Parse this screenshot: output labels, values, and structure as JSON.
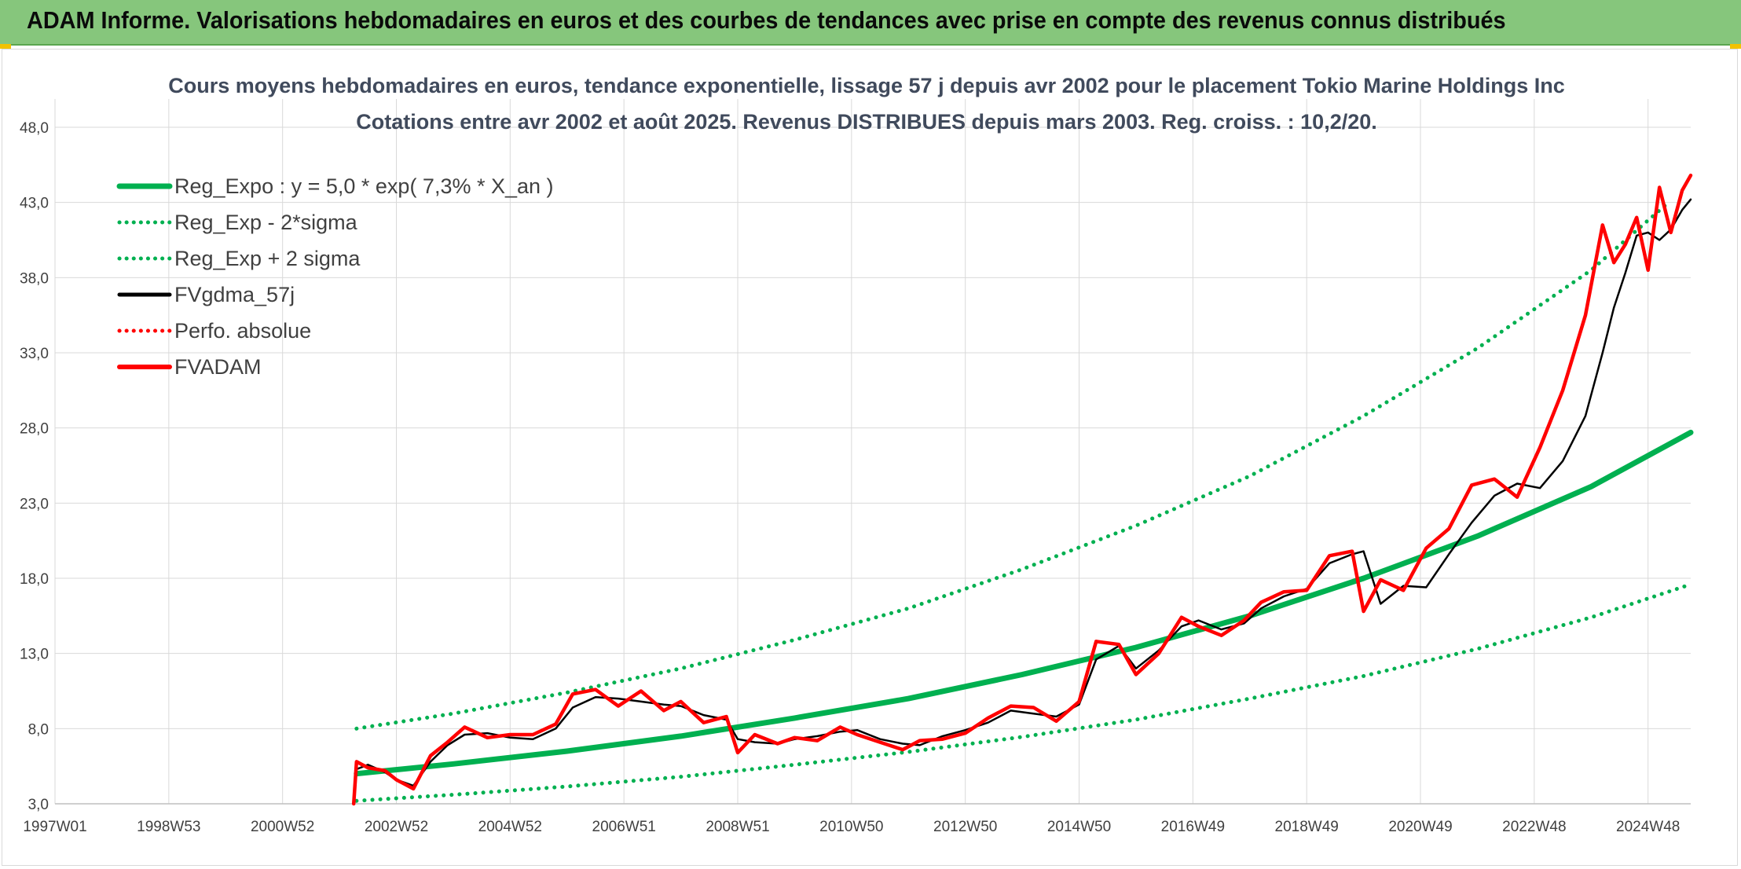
{
  "banner": {
    "title": "ADAM Informe. Valorisations hebdomadaires en euros et des courbes de tendances avec prise en compte des revenus connus distribués"
  },
  "colors": {
    "banner_bg": "#86c67c",
    "reg_expo": "#00b050",
    "fvgdma": "#000000",
    "fvadam": "#ff0000",
    "perfo": "#ff0000",
    "grid": "#d9d9d9"
  },
  "chart_data": {
    "type": "line",
    "title": "Cours moyens hebdomadaires en euros, tendance exponentielle, lissage 57 j depuis avr 2002 pour le placement Tokio Marine Holdings Inc",
    "subtitle": "Cotations entre avr 2002 et août 2025. Revenus DISTRIBUES depuis mars 2003. Reg. croiss. : 10,2/20.",
    "xlabel": "",
    "ylabel": "",
    "grid": true,
    "legend_position": "top-left",
    "xlim": [
      1997.0,
      2025.75
    ],
    "ylim": [
      3.0,
      48.0
    ],
    "y_ticks": [
      "3,0",
      "8,0",
      "13,0",
      "18,0",
      "23,0",
      "28,0",
      "33,0",
      "38,0",
      "43,0",
      "48,0"
    ],
    "x_ticks": [
      {
        "label": "1997W01",
        "x": 1997.0
      },
      {
        "label": "1998W53",
        "x": 1999.0
      },
      {
        "label": "2000W52",
        "x": 2001.0
      },
      {
        "label": "2002W52",
        "x": 2003.0
      },
      {
        "label": "2004W52",
        "x": 2005.0
      },
      {
        "label": "2006W51",
        "x": 2007.0
      },
      {
        "label": "2008W51",
        "x": 2009.0
      },
      {
        "label": "2010W50",
        "x": 2011.0
      },
      {
        "label": "2012W50",
        "x": 2013.0
      },
      {
        "label": "2014W50",
        "x": 2015.0
      },
      {
        "label": "2016W49",
        "x": 2017.0
      },
      {
        "label": "2018W49",
        "x": 2019.0
      },
      {
        "label": "2020W49",
        "x": 2021.0
      },
      {
        "label": "2022W48",
        "x": 2023.0
      },
      {
        "label": "2024W48",
        "x": 2025.0
      }
    ],
    "series": [
      {
        "name": "Reg_Expo : y = 5,0 * exp( 7,3% *  X_an )",
        "color": "#00b050",
        "style": "solid",
        "x": [
          2002.3,
          2004.0,
          2006.0,
          2008.0,
          2010.0,
          2012.0,
          2014.0,
          2016.0,
          2018.0,
          2020.0,
          2022.0,
          2024.0,
          2025.75
        ],
        "y": [
          5.0,
          5.65,
          6.5,
          7.5,
          8.7,
          10.0,
          11.6,
          13.4,
          15.5,
          18.0,
          20.8,
          24.1,
          27.7
        ]
      },
      {
        "name": "Reg_Exp - 2*sigma",
        "color": "#00b050",
        "style": "dotted",
        "x": [
          2002.3,
          2004.0,
          2006.0,
          2008.0,
          2010.0,
          2012.0,
          2014.0,
          2016.0,
          2018.0,
          2020.0,
          2022.0,
          2024.0,
          2025.75
        ],
        "y": [
          3.2,
          3.6,
          4.15,
          4.8,
          5.6,
          6.45,
          7.45,
          8.6,
          10.0,
          11.5,
          13.3,
          15.4,
          17.6
        ]
      },
      {
        "name": "Reg_Exp + 2 sigma",
        "color": "#00b050",
        "style": "dotted",
        "x": [
          2002.3,
          2004.0,
          2006.0,
          2008.0,
          2010.0,
          2012.0,
          2014.0,
          2016.0,
          2018.0,
          2020.0,
          2022.0,
          2024.0,
          2025.3
        ],
        "y": [
          8.0,
          9.0,
          10.4,
          12.0,
          13.9,
          16.0,
          18.6,
          21.5,
          24.8,
          28.8,
          33.3,
          38.5,
          42.8
        ]
      },
      {
        "name": "FVgdma_57j",
        "color": "#000000",
        "style": "solid",
        "x": [
          2002.3,
          2002.5,
          2002.8,
          2003.0,
          2003.3,
          2003.6,
          2003.9,
          2004.2,
          2004.6,
          2005.0,
          2005.4,
          2005.8,
          2006.1,
          2006.5,
          2006.9,
          2007.3,
          2007.7,
          2008.0,
          2008.4,
          2008.8,
          2009.0,
          2009.3,
          2009.7,
          2010.0,
          2010.4,
          2010.8,
          2011.1,
          2011.5,
          2011.9,
          2012.2,
          2012.6,
          2013.0,
          2013.4,
          2013.8,
          2014.2,
          2014.6,
          2015.0,
          2015.3,
          2015.7,
          2016.0,
          2016.4,
          2016.8,
          2017.1,
          2017.5,
          2017.9,
          2018.2,
          2018.6,
          2019.0,
          2019.4,
          2019.8,
          2020.0,
          2020.3,
          2020.7,
          2021.1,
          2021.5,
          2021.9,
          2022.3,
          2022.7,
          2023.1,
          2023.5,
          2023.9,
          2024.2,
          2024.4,
          2024.6,
          2024.8,
          2025.0,
          2025.2,
          2025.4,
          2025.6,
          2025.75
        ],
        "y": [
          5.3,
          5.6,
          5.1,
          4.6,
          4.2,
          5.8,
          6.9,
          7.6,
          7.7,
          7.4,
          7.3,
          8.0,
          9.4,
          10.1,
          10.0,
          9.8,
          9.6,
          9.5,
          8.9,
          8.6,
          7.3,
          7.1,
          7.0,
          7.3,
          7.5,
          7.8,
          7.9,
          7.3,
          7.0,
          6.9,
          7.5,
          7.9,
          8.4,
          9.2,
          9.0,
          8.8,
          9.6,
          12.6,
          13.5,
          12.0,
          13.2,
          14.8,
          15.2,
          14.6,
          15.0,
          16.0,
          16.8,
          17.3,
          19.0,
          19.6,
          19.8,
          16.3,
          17.5,
          17.4,
          19.6,
          21.7,
          23.5,
          24.3,
          24.0,
          25.8,
          28.8,
          33.0,
          36.0,
          38.3,
          40.8,
          41.0,
          40.5,
          41.2,
          42.5,
          43.2
        ]
      },
      {
        "name": "Perfo. absolue",
        "color": "#ff0000",
        "style": "dotted",
        "x": [],
        "y": []
      },
      {
        "name": "FVADAM",
        "color": "#ff0000",
        "style": "solid",
        "x": [
          2002.25,
          2002.3,
          2002.5,
          2002.8,
          2003.0,
          2003.3,
          2003.6,
          2003.9,
          2004.2,
          2004.6,
          2005.0,
          2005.4,
          2005.8,
          2006.1,
          2006.5,
          2006.9,
          2007.3,
          2007.7,
          2008.0,
          2008.4,
          2008.8,
          2009.0,
          2009.3,
          2009.7,
          2010.0,
          2010.4,
          2010.8,
          2011.1,
          2011.5,
          2011.9,
          2012.2,
          2012.6,
          2013.0,
          2013.4,
          2013.8,
          2014.2,
          2014.6,
          2015.0,
          2015.3,
          2015.7,
          2016.0,
          2016.4,
          2016.8,
          2017.1,
          2017.5,
          2017.9,
          2018.2,
          2018.6,
          2019.0,
          2019.4,
          2019.8,
          2020.0,
          2020.3,
          2020.7,
          2021.1,
          2021.5,
          2021.9,
          2022.3,
          2022.7,
          2023.1,
          2023.5,
          2023.9,
          2024.2,
          2024.4,
          2024.6,
          2024.8,
          2025.0,
          2025.2,
          2025.4,
          2025.6,
          2025.75
        ],
        "y": [
          3.0,
          5.8,
          5.4,
          5.2,
          4.6,
          4.0,
          6.2,
          7.1,
          8.1,
          7.4,
          7.6,
          7.6,
          8.3,
          10.3,
          10.6,
          9.5,
          10.5,
          9.2,
          9.8,
          8.4,
          8.8,
          6.4,
          7.6,
          7.0,
          7.4,
          7.2,
          8.1,
          7.6,
          7.1,
          6.6,
          7.2,
          7.3,
          7.7,
          8.7,
          9.5,
          9.4,
          8.5,
          9.8,
          13.8,
          13.6,
          11.6,
          13.0,
          15.4,
          14.8,
          14.2,
          15.2,
          16.4,
          17.1,
          17.2,
          19.5,
          19.8,
          15.8,
          17.9,
          17.2,
          20.0,
          21.3,
          24.2,
          24.6,
          23.4,
          26.7,
          30.5,
          35.5,
          41.5,
          39.0,
          40.2,
          42.0,
          38.5,
          44.0,
          41.0,
          43.8,
          44.8
        ]
      }
    ]
  }
}
